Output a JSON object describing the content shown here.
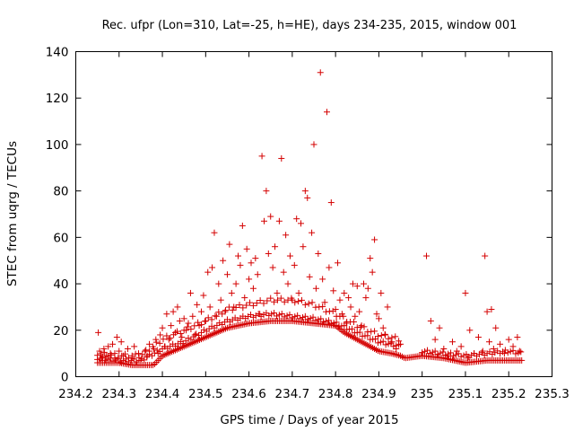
{
  "chart_data": {
    "type": "scatter",
    "title": "Rec. ufpr (Lon=310, Lat=-25, h=HE), days 234-235, 2015, window 001",
    "xlabel": "GPS time / Days of year 2015",
    "ylabel": "STEC from uqrg / TECUs",
    "xlim": [
      234.2,
      235.3
    ],
    "ylim": [
      0,
      140
    ],
    "xticks": [
      234.2,
      234.3,
      234.4,
      234.5,
      234.6,
      234.7,
      234.8,
      234.9,
      235.0,
      235.1,
      235.2,
      235.3
    ],
    "xtick_labels": [
      "234.2",
      "234.3",
      "234.4",
      "234.5",
      "234.6",
      "234.7",
      "234.8",
      "234.9",
      "235",
      "235.1",
      "235.2",
      "235.3"
    ],
    "yticks": [
      0,
      20,
      40,
      60,
      80,
      100,
      120,
      140
    ],
    "ytick_labels": [
      "0",
      "20",
      "40",
      "60",
      "80",
      "100",
      "120",
      "140"
    ],
    "grid": false,
    "marker": "plus",
    "color": "#d40000",
    "points": [
      [
        234.252,
        19
      ],
      [
        234.255,
        11
      ],
      [
        234.26,
        8
      ],
      [
        234.265,
        12
      ],
      [
        234.27,
        9
      ],
      [
        234.275,
        13
      ],
      [
        234.28,
        10
      ],
      [
        234.285,
        14
      ],
      [
        234.29,
        8
      ],
      [
        234.295,
        17
      ],
      [
        234.3,
        11
      ],
      [
        234.305,
        15
      ],
      [
        234.31,
        9
      ],
      [
        234.32,
        12
      ],
      [
        234.33,
        8
      ],
      [
        234.335,
        13
      ],
      [
        234.345,
        10
      ],
      [
        234.35,
        7
      ],
      [
        234.36,
        11
      ],
      [
        234.365,
        9
      ],
      [
        234.37,
        14
      ],
      [
        234.38,
        12
      ],
      [
        234.385,
        16
      ],
      [
        234.39,
        10
      ],
      [
        234.395,
        18
      ],
      [
        234.4,
        21
      ],
      [
        234.405,
        13
      ],
      [
        234.41,
        27
      ],
      [
        234.415,
        16
      ],
      [
        234.42,
        22
      ],
      [
        234.425,
        28
      ],
      [
        234.43,
        19
      ],
      [
        234.435,
        30
      ],
      [
        234.44,
        24
      ],
      [
        234.445,
        17
      ],
      [
        234.45,
        25
      ],
      [
        234.455,
        20
      ],
      [
        234.46,
        23
      ],
      [
        234.465,
        36
      ],
      [
        234.47,
        26
      ],
      [
        234.475,
        18
      ],
      [
        234.48,
        31
      ],
      [
        234.485,
        22
      ],
      [
        234.49,
        28
      ],
      [
        234.495,
        35
      ],
      [
        234.5,
        24
      ],
      [
        234.505,
        45
      ],
      [
        234.51,
        30
      ],
      [
        234.515,
        47
      ],
      [
        234.52,
        62
      ],
      [
        234.525,
        26
      ],
      [
        234.53,
        40
      ],
      [
        234.535,
        33
      ],
      [
        234.54,
        50
      ],
      [
        234.545,
        28
      ],
      [
        234.55,
        44
      ],
      [
        234.555,
        57
      ],
      [
        234.56,
        36
      ],
      [
        234.565,
        30
      ],
      [
        234.57,
        40
      ],
      [
        234.575,
        52
      ],
      [
        234.58,
        48
      ],
      [
        234.585,
        65
      ],
      [
        234.59,
        34
      ],
      [
        234.595,
        55
      ],
      [
        234.6,
        42
      ],
      [
        234.605,
        49
      ],
      [
        234.61,
        38
      ],
      [
        234.615,
        51
      ],
      [
        234.62,
        44
      ],
      [
        234.625,
        27
      ],
      [
        234.63,
        95
      ],
      [
        234.635,
        67
      ],
      [
        234.64,
        80
      ],
      [
        234.645,
        53
      ],
      [
        234.65,
        69
      ],
      [
        234.655,
        47
      ],
      [
        234.66,
        56
      ],
      [
        234.665,
        36
      ],
      [
        234.67,
        67
      ],
      [
        234.675,
        94
      ],
      [
        234.68,
        45
      ],
      [
        234.685,
        61
      ],
      [
        234.69,
        40
      ],
      [
        234.695,
        52
      ],
      [
        234.7,
        33
      ],
      [
        234.705,
        48
      ],
      [
        234.71,
        68
      ],
      [
        234.715,
        36
      ],
      [
        234.72,
        66
      ],
      [
        234.725,
        56
      ],
      [
        234.73,
        80
      ],
      [
        234.735,
        77
      ],
      [
        234.74,
        43
      ],
      [
        234.745,
        62
      ],
      [
        234.75,
        100
      ],
      [
        234.755,
        38
      ],
      [
        234.76,
        53
      ],
      [
        234.765,
        131
      ],
      [
        234.77,
        42
      ],
      [
        234.775,
        32
      ],
      [
        234.78,
        114
      ],
      [
        234.785,
        47
      ],
      [
        234.79,
        75
      ],
      [
        234.795,
        37
      ],
      [
        234.8,
        29
      ],
      [
        234.805,
        49
      ],
      [
        234.81,
        33
      ],
      [
        234.815,
        27
      ],
      [
        234.82,
        36
      ],
      [
        234.825,
        23
      ],
      [
        234.83,
        34
      ],
      [
        234.835,
        30
      ],
      [
        234.84,
        40
      ],
      [
        234.845,
        26
      ],
      [
        234.85,
        39
      ],
      [
        234.855,
        28
      ],
      [
        234.86,
        22
      ],
      [
        234.865,
        40
      ],
      [
        234.87,
        34
      ],
      [
        234.875,
        38
      ],
      [
        234.88,
        51
      ],
      [
        234.885,
        45
      ],
      [
        234.89,
        59
      ],
      [
        234.895,
        27
      ],
      [
        234.9,
        25
      ],
      [
        234.905,
        36
      ],
      [
        234.91,
        21
      ],
      [
        234.915,
        18
      ],
      [
        234.92,
        30
      ],
      [
        234.93,
        15
      ],
      [
        234.94,
        12
      ],
      [
        234.95,
        14
      ],
      [
        235.01,
        52
      ],
      [
        235.02,
        24
      ],
      [
        235.03,
        16
      ],
      [
        235.04,
        21
      ],
      [
        235.05,
        12
      ],
      [
        235.06,
        9
      ],
      [
        235.07,
        15
      ],
      [
        235.08,
        11
      ],
      [
        235.09,
        13
      ],
      [
        235.1,
        36
      ],
      [
        235.105,
        8
      ],
      [
        235.11,
        20
      ],
      [
        235.12,
        10
      ],
      [
        235.13,
        17
      ],
      [
        235.14,
        11
      ],
      [
        235.145,
        52
      ],
      [
        235.15,
        28
      ],
      [
        235.155,
        15
      ],
      [
        235.16,
        29
      ],
      [
        235.165,
        12
      ],
      [
        235.17,
        21
      ],
      [
        235.18,
        14
      ],
      [
        235.19,
        10
      ],
      [
        235.2,
        16
      ],
      [
        235.21,
        13
      ],
      [
        235.22,
        17
      ],
      [
        235.225,
        11
      ]
    ],
    "lower_envelope": [
      [
        234.25,
        6
      ],
      [
        234.3,
        6
      ],
      [
        234.33,
        5
      ],
      [
        234.36,
        5
      ],
      [
        234.38,
        5
      ],
      [
        234.4,
        9
      ],
      [
        234.45,
        13
      ],
      [
        234.5,
        17
      ],
      [
        234.55,
        21
      ],
      [
        234.6,
        23
      ],
      [
        234.65,
        24
      ],
      [
        234.7,
        24
      ],
      [
        234.75,
        23
      ],
      [
        234.8,
        22
      ],
      [
        234.82,
        19
      ],
      [
        234.85,
        16
      ],
      [
        234.88,
        13
      ],
      [
        234.9,
        11
      ],
      [
        234.93,
        10
      ],
      [
        234.95,
        9
      ],
      [
        234.96,
        8
      ],
      [
        235.0,
        9
      ],
      [
        235.05,
        8
      ],
      [
        235.1,
        6
      ],
      [
        235.15,
        7
      ],
      [
        235.2,
        7
      ],
      [
        235.23,
        7
      ]
    ],
    "mid_track": [
      [
        234.25,
        8
      ],
      [
        234.3,
        7
      ],
      [
        234.35,
        7
      ],
      [
        234.4,
        12
      ],
      [
        234.45,
        15
      ],
      [
        234.5,
        20
      ],
      [
        234.55,
        24
      ],
      [
        234.6,
        26
      ],
      [
        234.65,
        27
      ],
      [
        234.7,
        26
      ],
      [
        234.75,
        25
      ],
      [
        234.8,
        23
      ],
      [
        234.85,
        19
      ],
      [
        234.9,
        15
      ],
      [
        234.95,
        13
      ]
    ],
    "upper_band": [
      [
        234.25,
        10
      ],
      [
        234.3,
        9
      ],
      [
        234.35,
        9
      ],
      [
        234.4,
        16
      ],
      [
        234.45,
        20
      ],
      [
        234.5,
        24
      ],
      [
        234.55,
        29
      ],
      [
        234.6,
        31
      ],
      [
        234.65,
        33
      ],
      [
        234.7,
        33
      ],
      [
        234.75,
        31
      ],
      [
        234.8,
        27
      ],
      [
        234.85,
        22
      ],
      [
        234.9,
        18
      ],
      [
        234.95,
        16
      ]
    ],
    "late_bands": [
      [
        235.0,
        11
      ],
      [
        235.05,
        10
      ],
      [
        235.1,
        9
      ],
      [
        235.15,
        10
      ],
      [
        235.2,
        11
      ],
      [
        235.23,
        10
      ]
    ]
  }
}
